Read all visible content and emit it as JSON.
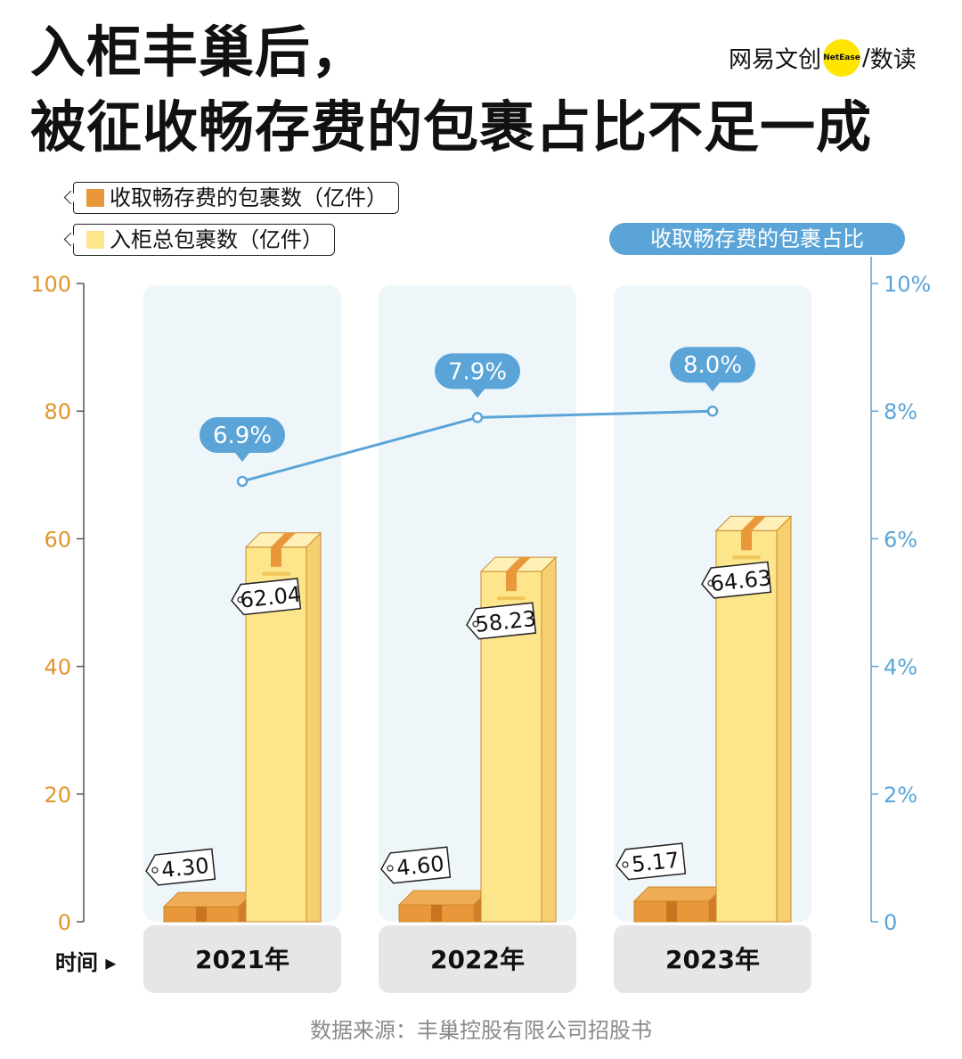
{
  "title_line1": "入柜丰巢后，",
  "title_line2": "被征收畅存费的包裹占比不足一成",
  "brand": {
    "name": "网易文创",
    "badge": "NetEase",
    "separator": "/",
    "sub": "数读"
  },
  "source": "数据来源：丰巢控股有限公司招股书",
  "time_label": "时间 ▸",
  "colors": {
    "charged_bar": "#e8983a",
    "total_bar": "#fde58c",
    "line": "#5aa4d8",
    "left_axis": "#e0952e",
    "right_axis": "#5aa4d8",
    "panel": "#eef6fa",
    "year_box": "#e6e6e6"
  },
  "chart_data": {
    "type": "bar",
    "title": "入柜丰巢后，被征收畅存费的包裹占比不足一成",
    "categories": [
      "2021年",
      "2022年",
      "2023年"
    ],
    "xlabel": "时间",
    "series": [
      {
        "name": "收取畅存费的包裹数（亿件）",
        "axis": "left",
        "kind": "bar",
        "values": [
          4.3,
          4.6,
          5.17
        ],
        "labels": [
          "4.30",
          "4.60",
          "5.17"
        ]
      },
      {
        "name": "入柜总包裹数（亿件）",
        "axis": "left",
        "kind": "bar",
        "values": [
          62.04,
          58.23,
          64.63
        ],
        "labels": [
          "62.04",
          "58.23",
          "64.63"
        ]
      },
      {
        "name": "收取畅存费的包裹占比",
        "axis": "right",
        "kind": "line",
        "values": [
          6.9,
          7.9,
          8.0
        ],
        "labels": [
          "6.9%",
          "7.9%",
          "8.0%"
        ]
      }
    ],
    "left_axis": {
      "ylim": [
        0,
        100
      ],
      "ticks": [
        "0",
        "20",
        "40",
        "60",
        "80",
        "100"
      ]
    },
    "right_axis": {
      "ylim": [
        0,
        10
      ],
      "ticks": [
        "0",
        "2%",
        "4%",
        "6%",
        "8%",
        "10%"
      ]
    }
  }
}
